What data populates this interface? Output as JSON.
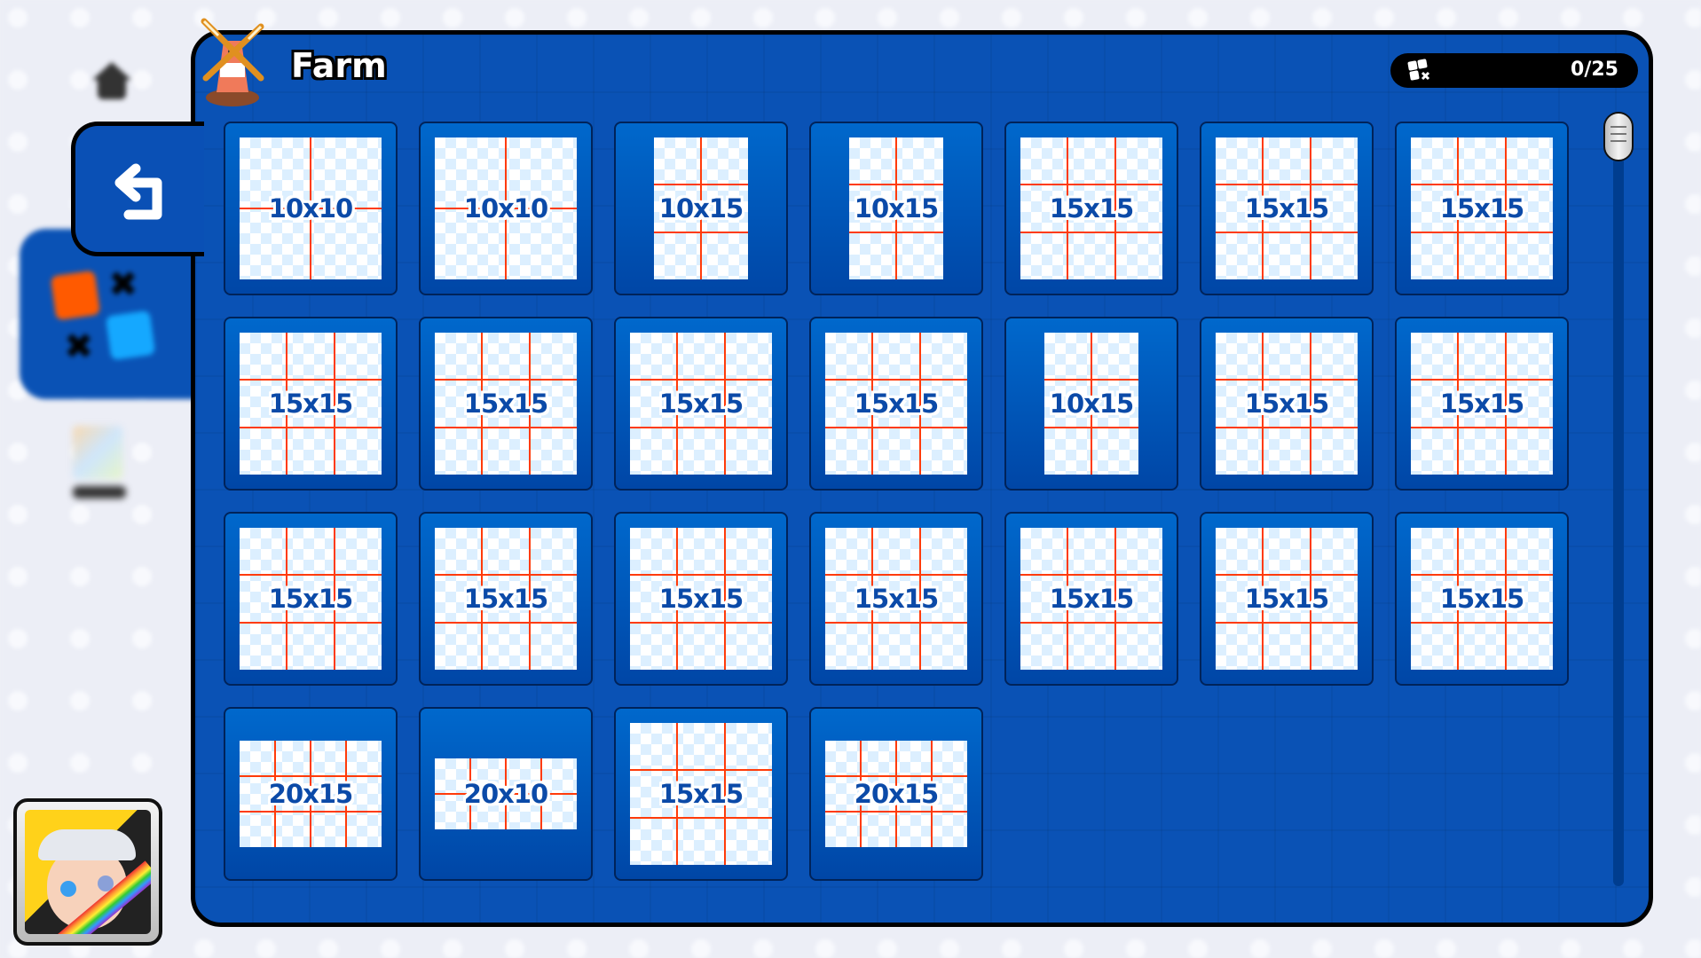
{
  "header": {
    "title": "Farm",
    "icon": "windmill-icon"
  },
  "counter": {
    "icon": "puzzle-pieces-icon",
    "text": "0/25"
  },
  "back_button": {
    "icon": "return-arrow-icon"
  },
  "sidebar": {
    "items": [
      {
        "icon": "home-icon"
      },
      {
        "icon": "puzzle-category-icon",
        "selected": true
      },
      {
        "icon": "gallery-icon"
      }
    ]
  },
  "colors": {
    "panel": "#0a52b5",
    "tile_top": "#0068cc",
    "tile_bottom": "#0046a6",
    "grid_line": "#ff3b0a",
    "label": "#0b4aa8"
  },
  "puzzles": [
    {
      "label": "10x10",
      "w": 10,
      "h": 10
    },
    {
      "label": "10x10",
      "w": 10,
      "h": 10
    },
    {
      "label": "10x15",
      "w": 10,
      "h": 15
    },
    {
      "label": "10x15",
      "w": 10,
      "h": 15
    },
    {
      "label": "15x15",
      "w": 15,
      "h": 15
    },
    {
      "label": "15x15",
      "w": 15,
      "h": 15
    },
    {
      "label": "15x15",
      "w": 15,
      "h": 15
    },
    {
      "label": "15x15",
      "w": 15,
      "h": 15
    },
    {
      "label": "15x15",
      "w": 15,
      "h": 15
    },
    {
      "label": "15x15",
      "w": 15,
      "h": 15
    },
    {
      "label": "15x15",
      "w": 15,
      "h": 15
    },
    {
      "label": "10x15",
      "w": 10,
      "h": 15
    },
    {
      "label": "15x15",
      "w": 15,
      "h": 15
    },
    {
      "label": "15x15",
      "w": 15,
      "h": 15
    },
    {
      "label": "15x15",
      "w": 15,
      "h": 15
    },
    {
      "label": "15x15",
      "w": 15,
      "h": 15
    },
    {
      "label": "15x15",
      "w": 15,
      "h": 15
    },
    {
      "label": "15x15",
      "w": 15,
      "h": 15
    },
    {
      "label": "15x15",
      "w": 15,
      "h": 15
    },
    {
      "label": "15x15",
      "w": 15,
      "h": 15
    },
    {
      "label": "15x15",
      "w": 15,
      "h": 15
    },
    {
      "label": "20x15",
      "w": 20,
      "h": 15
    },
    {
      "label": "20x10",
      "w": 20,
      "h": 10
    },
    {
      "label": "15x15",
      "w": 15,
      "h": 15
    },
    {
      "label": "20x15",
      "w": 20,
      "h": 15
    }
  ]
}
